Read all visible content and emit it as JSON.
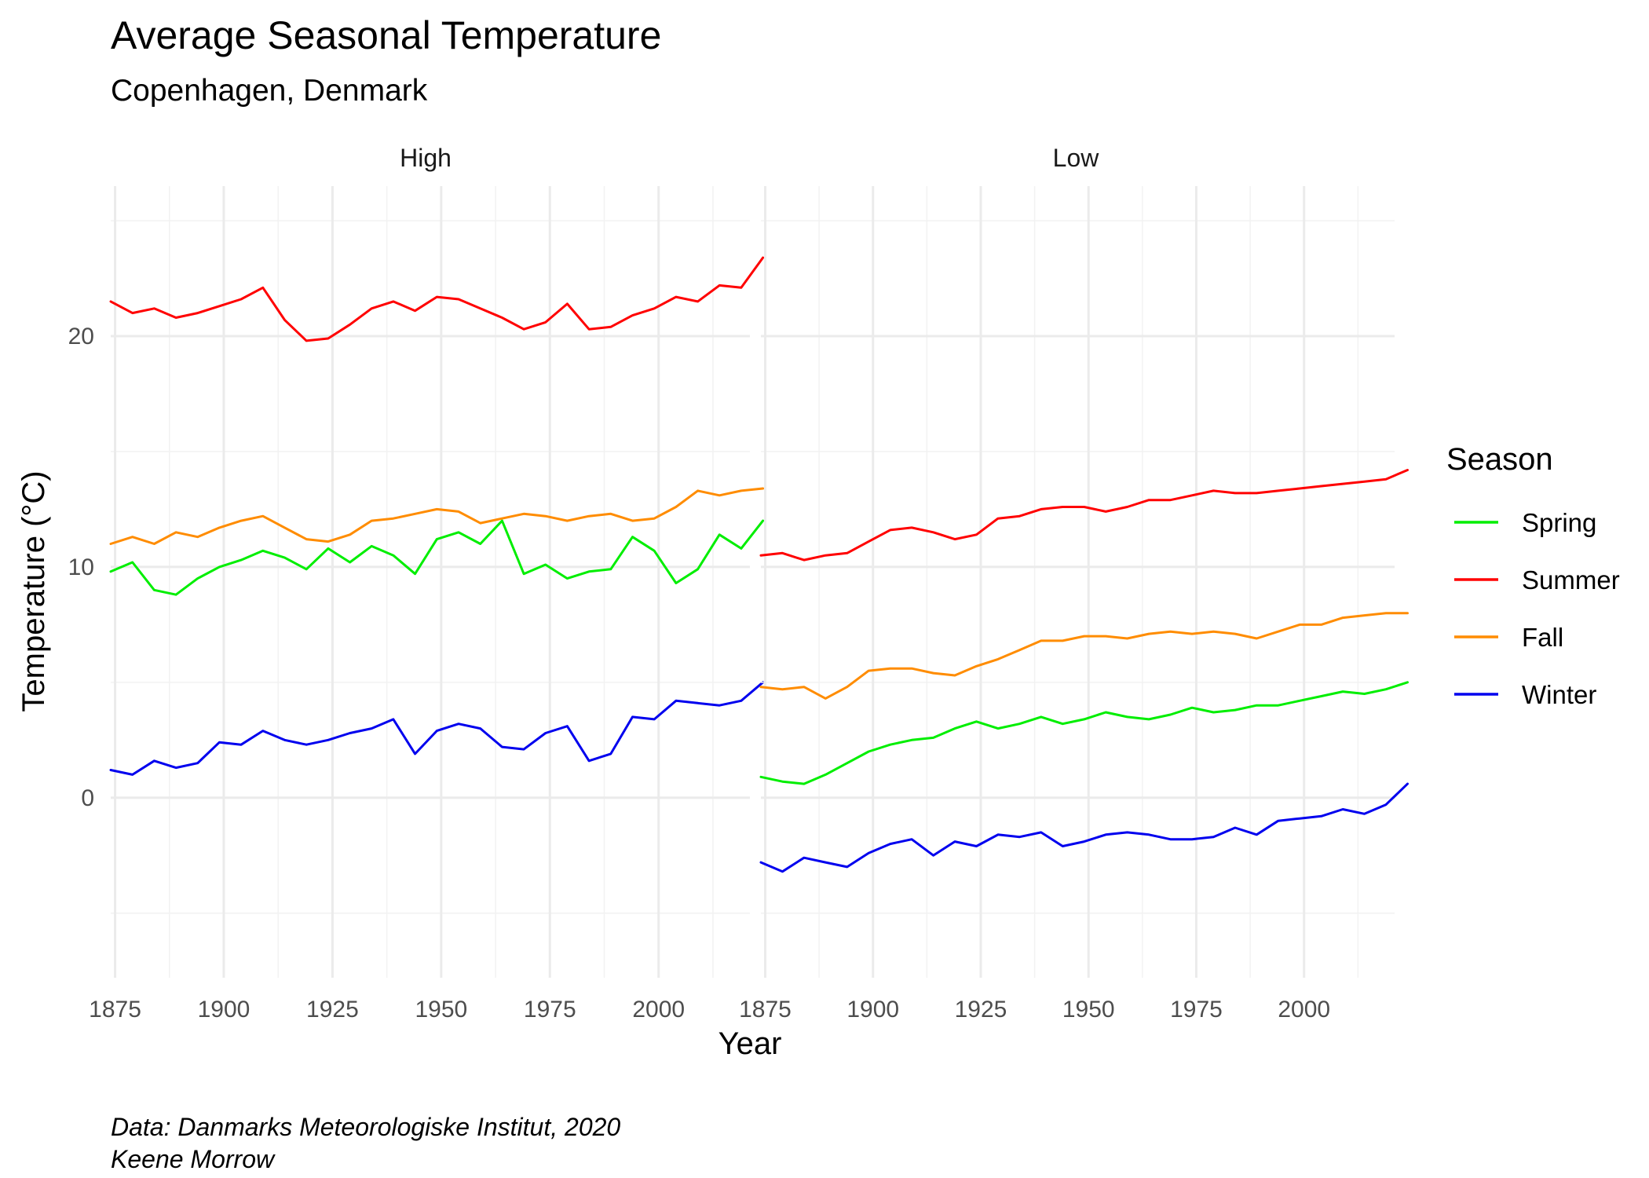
{
  "chart_data": {
    "type": "line",
    "title": "Average Seasonal Temperature",
    "subtitle": "Copenhagen, Denmark",
    "xlabel": "Year",
    "ylabel": "Temperature (°C)",
    "xlim": [
      1874,
      2021
    ],
    "ylim": [
      -7.8,
      26.5
    ],
    "x_ticks": [
      1875,
      1900,
      1925,
      1950,
      1975,
      2000
    ],
    "y_ticks": [
      0,
      10,
      20
    ],
    "grid": true,
    "legend": {
      "title": "Season",
      "position": "right",
      "entries": [
        {
          "label": "Spring",
          "color": "#00ee00"
        },
        {
          "label": "Summer",
          "color": "#ff0000"
        },
        {
          "label": "Fall",
          "color": "#ff8c00"
        },
        {
          "label": "Winter",
          "color": "#0000ee"
        }
      ]
    },
    "x_start": 1874,
    "x_step": 5,
    "panels": [
      {
        "name": "High",
        "series": [
          {
            "name": "Spring",
            "values": [
              9.8,
              10.2,
              9.0,
              8.8,
              9.5,
              10.0,
              10.3,
              10.7,
              10.4,
              9.9,
              10.8,
              10.2,
              10.9,
              10.5,
              9.7,
              11.2,
              11.5,
              11.0,
              12.0,
              9.7,
              10.1,
              9.5,
              9.8,
              9.9,
              11.3,
              10.7,
              9.3,
              9.9,
              11.4,
              10.8,
              12.0
            ]
          },
          {
            "name": "Summer",
            "values": [
              21.5,
              21.0,
              21.2,
              20.8,
              21.0,
              21.3,
              21.6,
              22.1,
              20.7,
              19.8,
              19.9,
              20.5,
              21.2,
              21.5,
              21.1,
              21.7,
              21.6,
              21.2,
              20.8,
              20.3,
              20.6,
              21.4,
              20.3,
              20.4,
              20.9,
              21.2,
              21.7,
              21.5,
              22.2,
              22.1,
              23.4
            ]
          },
          {
            "name": "Fall",
            "values": [
              11.0,
              11.3,
              11.0,
              11.5,
              11.3,
              11.7,
              12.0,
              12.2,
              11.7,
              11.2,
              11.1,
              11.4,
              12.0,
              12.1,
              12.3,
              12.5,
              12.4,
              11.9,
              12.1,
              12.3,
              12.2,
              12.0,
              12.2,
              12.3,
              12.0,
              12.1,
              12.6,
              13.3,
              13.1,
              13.3,
              13.4
            ]
          },
          {
            "name": "Winter",
            "values": [
              1.2,
              1.0,
              1.6,
              1.3,
              1.5,
              2.4,
              2.3,
              2.9,
              2.5,
              2.3,
              2.5,
              2.8,
              3.0,
              3.4,
              1.9,
              2.9,
              3.2,
              3.0,
              2.2,
              2.1,
              2.8,
              3.1,
              1.6,
              1.9,
              3.5,
              3.4,
              4.2,
              4.1,
              4.0,
              4.2,
              5.0
            ]
          }
        ]
      },
      {
        "name": "Low",
        "series": [
          {
            "name": "Spring",
            "values": [
              0.9,
              0.7,
              0.6,
              1.0,
              1.5,
              2.0,
              2.3,
              2.5,
              2.6,
              3.0,
              3.3,
              3.0,
              3.2,
              3.5,
              3.2,
              3.4,
              3.7,
              3.5,
              3.4,
              3.6,
              3.9,
              3.7,
              3.8,
              4.0,
              4.0,
              4.2,
              4.4,
              4.6,
              4.5,
              4.7,
              5.0
            ]
          },
          {
            "name": "Summer",
            "values": [
              10.5,
              10.6,
              10.3,
              10.5,
              10.6,
              11.1,
              11.6,
              11.7,
              11.5,
              11.2,
              11.4,
              12.1,
              12.2,
              12.5,
              12.6,
              12.6,
              12.4,
              12.6,
              12.9,
              12.9,
              13.1,
              13.3,
              13.2,
              13.2,
              13.3,
              13.4,
              13.5,
              13.6,
              13.7,
              13.8,
              14.2
            ]
          },
          {
            "name": "Fall",
            "values": [
              4.8,
              4.7,
              4.8,
              4.3,
              4.8,
              5.5,
              5.6,
              5.6,
              5.4,
              5.3,
              5.7,
              6.0,
              6.4,
              6.8,
              6.8,
              7.0,
              7.0,
              6.9,
              7.1,
              7.2,
              7.1,
              7.2,
              7.1,
              6.9,
              7.2,
              7.5,
              7.5,
              7.8,
              7.9,
              8.0,
              8.0
            ]
          },
          {
            "name": "Winter",
            "values": [
              -2.8,
              -3.2,
              -2.6,
              -2.8,
              -3.0,
              -2.4,
              -2.0,
              -1.8,
              -2.5,
              -1.9,
              -2.1,
              -1.6,
              -1.7,
              -1.5,
              -2.1,
              -1.9,
              -1.6,
              -1.5,
              -1.6,
              -1.8,
              -1.8,
              -1.7,
              -1.3,
              -1.6,
              -1.0,
              -0.9,
              -0.8,
              -0.5,
              -0.7,
              -0.3,
              0.6
            ]
          }
        ]
      }
    ],
    "caption": [
      "Data: Danmarks Meteorologiske Institut, 2020",
      "Keene Morrow"
    ]
  }
}
